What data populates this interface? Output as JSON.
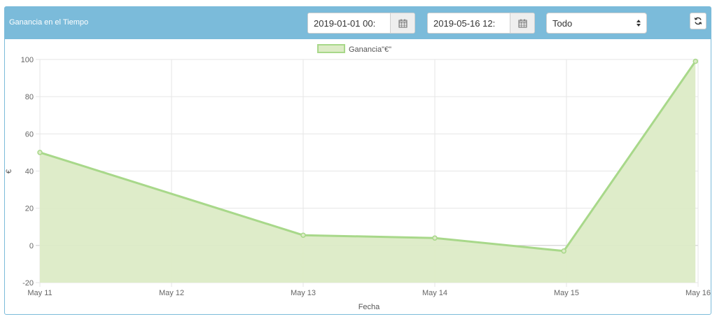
{
  "panel": {
    "title": "Ganancia en el Tiempo"
  },
  "filters": {
    "start_date": "2019-01-01 00:",
    "end_date": "2019-05-16 12:",
    "select_value": "Todo"
  },
  "icons": {
    "calendar": "calendar-icon",
    "refresh": "refresh-icon",
    "select": "up-down-arrows-icon"
  },
  "colors": {
    "header": "#7bbbda",
    "line": "#a8d88a",
    "fill": "#dcebc6"
  },
  "chart_data": {
    "type": "area",
    "title": "",
    "xlabel": "Fecha",
    "ylabel": "€",
    "legend_position": "top-center",
    "grid": true,
    "x": [
      "May 11",
      "May 12",
      "May 13",
      "May 14",
      "May 15",
      "May 16"
    ],
    "ylim": [
      -20,
      100
    ],
    "yticks": [
      "100",
      "80",
      "60",
      "40",
      "20",
      "0",
      "-20"
    ],
    "series": [
      {
        "name": "Ganancia\"€\"",
        "points": [
          {
            "x": 11.0,
            "y": 50
          },
          {
            "x": 13.0,
            "y": 5.5
          },
          {
            "x": 14.0,
            "y": 4
          },
          {
            "x": 14.98,
            "y": -3
          },
          {
            "x": 15.98,
            "y": 99
          }
        ]
      }
    ],
    "x_domain": [
      11,
      16
    ]
  }
}
